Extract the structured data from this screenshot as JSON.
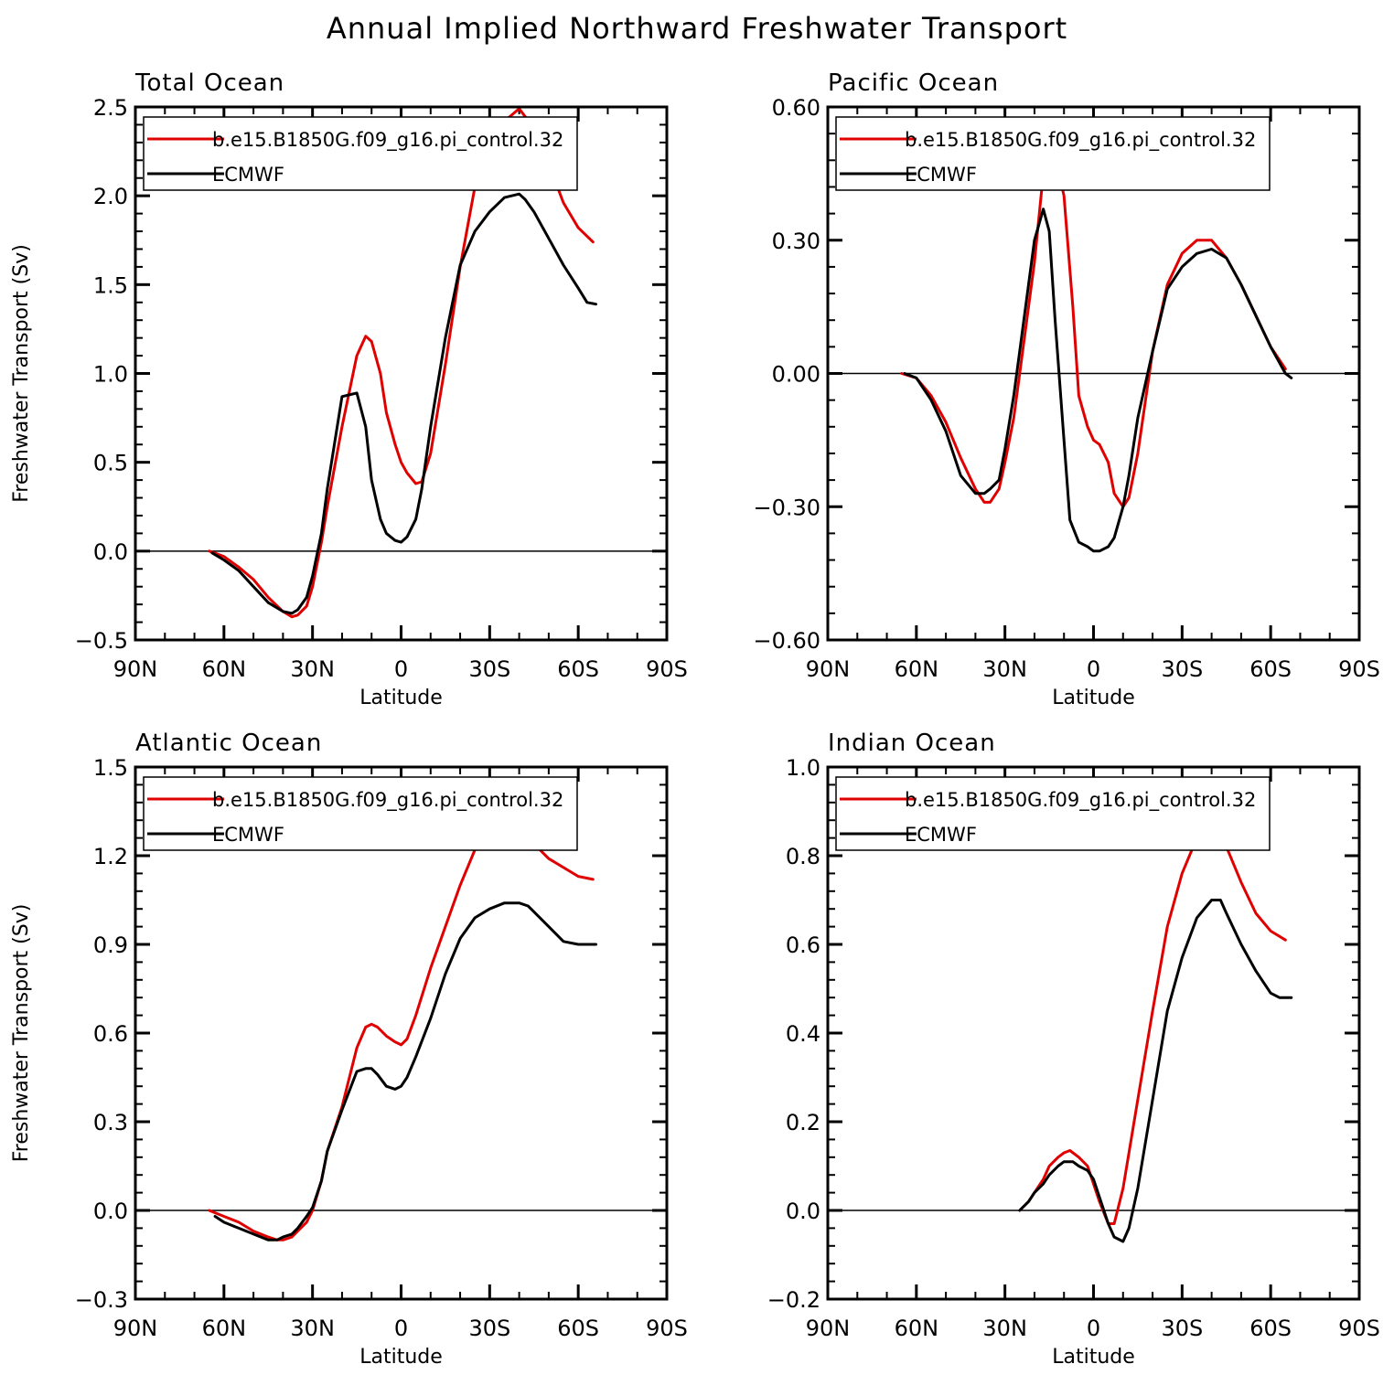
{
  "figure": {
    "title": "Annual Implied Northward Freshwater Transport"
  },
  "chart_data": [
    {
      "type": "line",
      "title": "Total Ocean",
      "xlabel": "Latitude",
      "ylabel": "Freshwater Transport (Sv)",
      "xlim": [
        90,
        -90
      ],
      "ylim": [
        -0.5,
        2.5
      ],
      "xticks": [
        90,
        60,
        30,
        0,
        -30,
        -60,
        -90
      ],
      "xticklabels": [
        "90N",
        "60N",
        "30N",
        "0",
        "30S",
        "60S",
        "90S"
      ],
      "yticks": [
        -0.5,
        0.0,
        0.5,
        1.0,
        1.5,
        2.0,
        2.5
      ],
      "yticklabels": [
        "-0.5",
        "0.0",
        "0.5",
        "1.0",
        "1.5",
        "2.0",
        "2.5"
      ],
      "zero_line": true,
      "legend": "top-left-inside",
      "series": [
        {
          "name": "b.e15.B1850G.f09_g16.pi_control.32",
          "color": "#e00000",
          "x": [
            65,
            60,
            55,
            50,
            45,
            40,
            37,
            35,
            32,
            30,
            27,
            25,
            20,
            15,
            12,
            10,
            7,
            5,
            2,
            0,
            -2,
            -5,
            -7,
            -10,
            -15,
            -20,
            -25,
            -30,
            -35,
            -40,
            -45,
            -50,
            -55,
            -60,
            -65
          ],
          "y": [
            0.0,
            -0.03,
            -0.09,
            -0.16,
            -0.26,
            -0.34,
            -0.37,
            -0.36,
            -0.31,
            -0.2,
            0.05,
            0.25,
            0.7,
            1.1,
            1.21,
            1.18,
            1.0,
            0.78,
            0.6,
            0.5,
            0.44,
            0.38,
            0.39,
            0.55,
            1.05,
            1.6,
            2.05,
            2.3,
            2.42,
            2.49,
            2.38,
            2.18,
            1.96,
            1.82,
            1.74
          ]
        },
        {
          "name": "ECMWF",
          "color": "#000000",
          "x": [
            64,
            60,
            55,
            50,
            45,
            40,
            37,
            35,
            32,
            30,
            27,
            25,
            20,
            15,
            12,
            10,
            7,
            5,
            2,
            0,
            -2,
            -5,
            -7,
            -10,
            -15,
            -20,
            -25,
            -30,
            -35,
            -40,
            -42,
            -45,
            -50,
            -55,
            -60,
            -63,
            -66
          ],
          "y": [
            -0.01,
            -0.05,
            -0.11,
            -0.2,
            -0.29,
            -0.34,
            -0.35,
            -0.33,
            -0.26,
            -0.14,
            0.1,
            0.35,
            0.87,
            0.89,
            0.7,
            0.4,
            0.18,
            0.1,
            0.06,
            0.05,
            0.08,
            0.18,
            0.35,
            0.7,
            1.2,
            1.61,
            1.8,
            1.91,
            1.99,
            2.01,
            1.98,
            1.91,
            1.76,
            1.61,
            1.48,
            1.4,
            1.39
          ]
        }
      ]
    },
    {
      "type": "line",
      "title": "Pacific Ocean",
      "xlabel": "Latitude",
      "ylabel": "",
      "xlim": [
        90,
        -90
      ],
      "ylim": [
        -0.6,
        0.6
      ],
      "xticks": [
        90,
        60,
        30,
        0,
        -30,
        -60,
        -90
      ],
      "xticklabels": [
        "90N",
        "60N",
        "30N",
        "0",
        "30S",
        "60S",
        "90S"
      ],
      "yticks": [
        -0.6,
        -0.3,
        0.0,
        0.3,
        0.6
      ],
      "yticklabels": [
        "-0.60",
        "-0.30",
        "0.00",
        "0.30",
        "0.60"
      ],
      "zero_line": true,
      "legend": "top-left-inside",
      "series": [
        {
          "name": "b.e15.B1850G.f09_g16.pi_control.32",
          "color": "#e00000",
          "x": [
            65,
            60,
            55,
            50,
            45,
            40,
            37,
            35,
            32,
            30,
            27,
            25,
            20,
            17,
            15,
            13,
            10,
            7,
            5,
            2,
            0,
            -2,
            -5,
            -7,
            -10,
            -12,
            -15,
            -20,
            -25,
            -30,
            -35,
            -40,
            -45,
            -50,
            -55,
            -60,
            -65
          ],
          "y": [
            0.0,
            -0.01,
            -0.05,
            -0.11,
            -0.19,
            -0.26,
            -0.29,
            -0.29,
            -0.26,
            -0.2,
            -0.1,
            0.0,
            0.25,
            0.45,
            0.49,
            0.49,
            0.4,
            0.15,
            -0.05,
            -0.12,
            -0.15,
            -0.16,
            -0.2,
            -0.27,
            -0.3,
            -0.28,
            -0.18,
            0.05,
            0.2,
            0.27,
            0.3,
            0.3,
            0.26,
            0.2,
            0.13,
            0.06,
            0.01
          ]
        },
        {
          "name": "ECMWF",
          "color": "#000000",
          "x": [
            64,
            60,
            55,
            50,
            45,
            40,
            37,
            35,
            32,
            30,
            27,
            25,
            20,
            17,
            15,
            13,
            10,
            8,
            5,
            2,
            0,
            -2,
            -5,
            -7,
            -10,
            -12,
            -15,
            -20,
            -25,
            -30,
            -35,
            -40,
            -45,
            -50,
            -55,
            -60,
            -65,
            -67
          ],
          "y": [
            0.0,
            -0.01,
            -0.06,
            -0.13,
            -0.23,
            -0.27,
            -0.27,
            -0.26,
            -0.24,
            -0.17,
            -0.05,
            0.05,
            0.3,
            0.37,
            0.32,
            0.12,
            -0.15,
            -0.33,
            -0.38,
            -0.39,
            -0.4,
            -0.4,
            -0.39,
            -0.37,
            -0.3,
            -0.23,
            -0.1,
            0.05,
            0.19,
            0.24,
            0.27,
            0.28,
            0.26,
            0.2,
            0.13,
            0.06,
            0.0,
            -0.01
          ]
        }
      ]
    },
    {
      "type": "line",
      "title": "Atlantic Ocean",
      "xlabel": "Latitude",
      "ylabel": "Freshwater Transport (Sv)",
      "xlim": [
        90,
        -90
      ],
      "ylim": [
        -0.3,
        1.5
      ],
      "xticks": [
        90,
        60,
        30,
        0,
        -30,
        -60,
        -90
      ],
      "xticklabels": [
        "90N",
        "60N",
        "30N",
        "0",
        "30S",
        "60S",
        "90S"
      ],
      "yticks": [
        -0.3,
        0.0,
        0.3,
        0.6,
        0.9,
        1.2,
        1.5
      ],
      "yticklabels": [
        "-0.3",
        "0.0",
        "0.3",
        "0.6",
        "0.9",
        "1.2",
        "1.5"
      ],
      "zero_line": true,
      "legend": "top-left-inside",
      "series": [
        {
          "name": "b.e15.B1850G.f09_g16.pi_control.32",
          "color": "#e00000",
          "x": [
            65,
            60,
            55,
            50,
            45,
            42,
            40,
            37,
            35,
            32,
            30,
            27,
            25,
            20,
            15,
            12,
            10,
            8,
            5,
            2,
            0,
            -2,
            -5,
            -10,
            -15,
            -20,
            -25,
            -30,
            -35,
            -40,
            -45,
            -50,
            -55,
            -60,
            -65
          ],
          "y": [
            0.0,
            -0.02,
            -0.04,
            -0.07,
            -0.09,
            -0.1,
            -0.1,
            -0.09,
            -0.07,
            -0.04,
            0.0,
            0.1,
            0.2,
            0.35,
            0.55,
            0.62,
            0.63,
            0.62,
            0.59,
            0.57,
            0.56,
            0.58,
            0.66,
            0.82,
            0.96,
            1.1,
            1.22,
            1.28,
            1.32,
            1.3,
            1.24,
            1.19,
            1.16,
            1.13,
            1.12
          ]
        },
        {
          "name": "ECMWF",
          "color": "#000000",
          "x": [
            63,
            60,
            55,
            50,
            45,
            42,
            40,
            37,
            35,
            32,
            30,
            27,
            25,
            20,
            15,
            12,
            10,
            8,
            5,
            2,
            0,
            -2,
            -5,
            -10,
            -15,
            -20,
            -25,
            -30,
            -35,
            -40,
            -43,
            -45,
            -50,
            -55,
            -60,
            -63,
            -66
          ],
          "y": [
            -0.02,
            -0.04,
            -0.06,
            -0.08,
            -0.1,
            -0.1,
            -0.09,
            -0.08,
            -0.06,
            -0.02,
            0.01,
            0.1,
            0.2,
            0.34,
            0.47,
            0.48,
            0.48,
            0.46,
            0.42,
            0.41,
            0.42,
            0.45,
            0.52,
            0.65,
            0.8,
            0.92,
            0.99,
            1.02,
            1.04,
            1.04,
            1.03,
            1.01,
            0.96,
            0.91,
            0.9,
            0.9,
            0.9
          ]
        }
      ]
    },
    {
      "type": "line",
      "title": "Indian Ocean",
      "xlabel": "Latitude",
      "ylabel": "",
      "xlim": [
        90,
        -90
      ],
      "ylim": [
        -0.2,
        1.0
      ],
      "xticks": [
        90,
        60,
        30,
        0,
        -30,
        -60,
        -90
      ],
      "xticklabels": [
        "90N",
        "60N",
        "30N",
        "0",
        "30S",
        "60S",
        "90S"
      ],
      "yticks": [
        -0.2,
        0.0,
        0.2,
        0.4,
        0.6,
        0.8,
        1.0
      ],
      "yticklabels": [
        "-0.2",
        "0.0",
        "0.2",
        "0.4",
        "0.6",
        "0.8",
        "1.0"
      ],
      "zero_line": true,
      "legend": "top-left-inside",
      "series": [
        {
          "name": "b.e15.B1850G.f09_g16.pi_control.32",
          "color": "#e00000",
          "x": [
            25,
            22,
            20,
            17,
            15,
            12,
            10,
            8,
            5,
            2,
            0,
            -2,
            -5,
            -7,
            -10,
            -15,
            -20,
            -25,
            -30,
            -35,
            -40,
            -42,
            -45,
            -50,
            -55,
            -60,
            -65
          ],
          "y": [
            0.0,
            0.02,
            0.04,
            0.07,
            0.1,
            0.12,
            0.13,
            0.135,
            0.12,
            0.1,
            0.06,
            0.02,
            -0.03,
            -0.03,
            0.05,
            0.25,
            0.45,
            0.64,
            0.76,
            0.84,
            0.86,
            0.86,
            0.82,
            0.74,
            0.67,
            0.63,
            0.61
          ]
        },
        {
          "name": "ECMWF",
          "color": "#000000",
          "x": [
            25,
            22,
            20,
            17,
            15,
            12,
            10,
            7,
            5,
            2,
            0,
            -2,
            -5,
            -7,
            -10,
            -12,
            -15,
            -20,
            -25,
            -30,
            -35,
            -40,
            -43,
            -45,
            -50,
            -55,
            -60,
            -63,
            -67
          ],
          "y": [
            0.0,
            0.02,
            0.04,
            0.06,
            0.08,
            0.1,
            0.11,
            0.11,
            0.1,
            0.09,
            0.07,
            0.03,
            -0.03,
            -0.06,
            -0.07,
            -0.04,
            0.05,
            0.25,
            0.45,
            0.57,
            0.66,
            0.7,
            0.7,
            0.67,
            0.6,
            0.54,
            0.49,
            0.48,
            0.48
          ]
        }
      ]
    }
  ]
}
